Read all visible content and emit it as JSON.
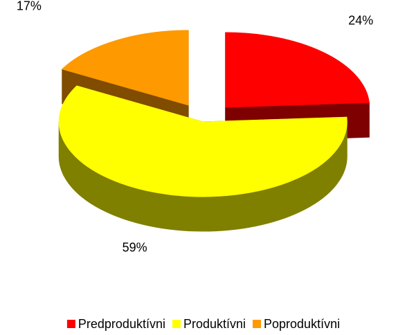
{
  "chart_data": {
    "type": "pie3d",
    "categories": [
      "Predproduktívni",
      "Produktívni",
      "Poproduktívni"
    ],
    "values": [
      24,
      59,
      17
    ],
    "value_labels": [
      "24%",
      "59%",
      "17%"
    ],
    "colors": [
      "#ff0000",
      "#ffff00",
      "#ff9900"
    ],
    "legend": "bottom"
  }
}
